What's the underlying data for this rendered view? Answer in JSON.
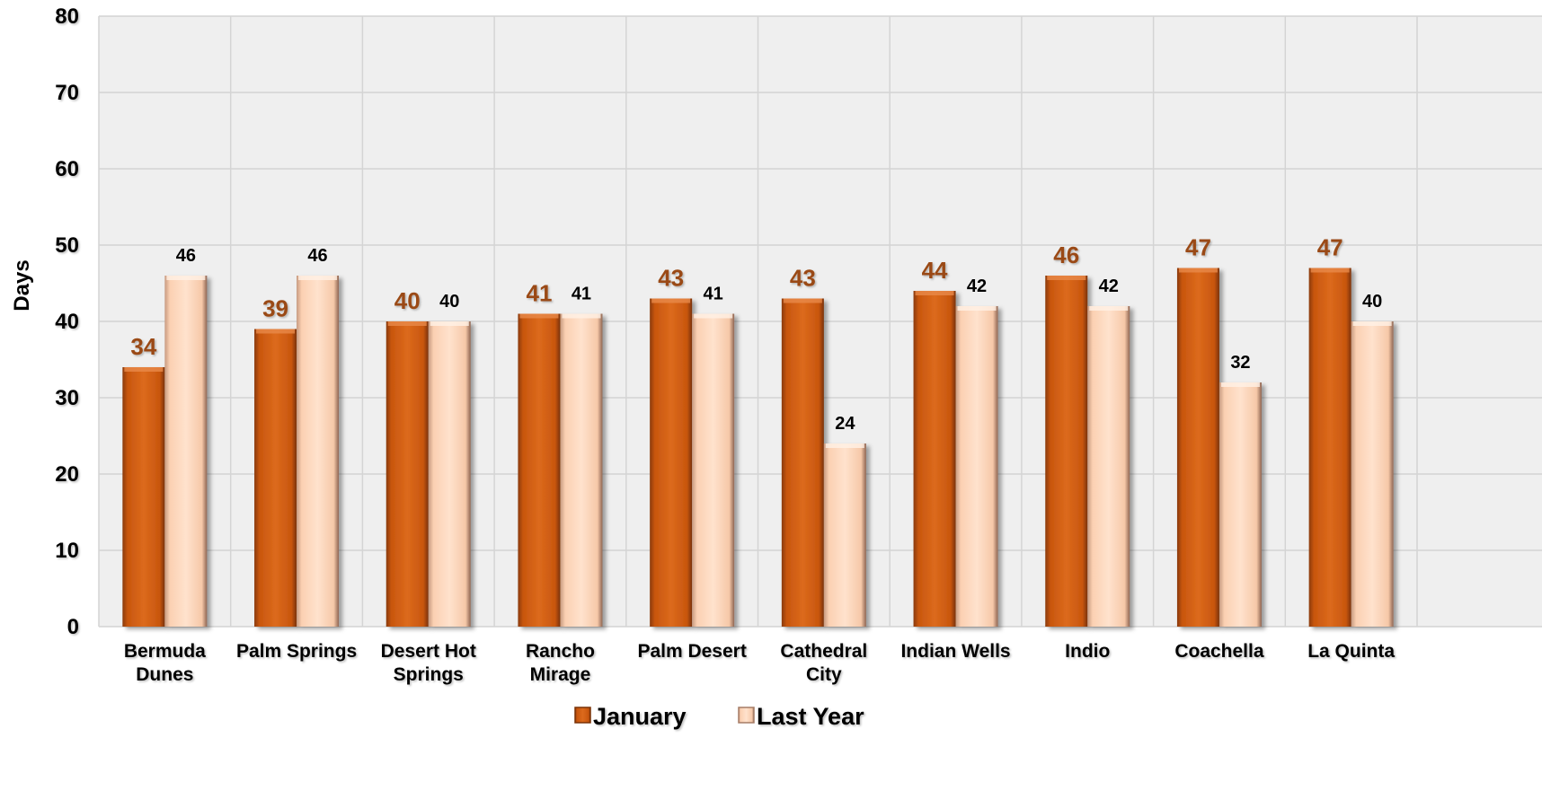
{
  "chart_data": {
    "type": "bar",
    "ylabel": "Days",
    "ylim": [
      0,
      80
    ],
    "yticks": [
      0,
      10,
      20,
      30,
      40,
      50,
      60,
      70,
      80
    ],
    "grid": true,
    "legend_position": "bottom-center",
    "categories": [
      [
        "Bermuda",
        "Dunes"
      ],
      [
        "Palm Springs"
      ],
      [
        "Desert Hot",
        "Springs"
      ],
      [
        "Rancho",
        "Mirage"
      ],
      [
        "Palm Desert"
      ],
      [
        "Cathedral",
        "City"
      ],
      [
        "Indian Wells"
      ],
      [
        "Indio"
      ],
      [
        "Coachella"
      ],
      [
        "La Quinta"
      ]
    ],
    "series": [
      {
        "name": "January",
        "color": "#d05e12",
        "values": [
          34,
          39,
          40,
          41,
          43,
          43,
          44,
          46,
          47,
          47
        ]
      },
      {
        "name": "Last Year",
        "color": "#fdd2b5",
        "values": [
          46,
          46,
          40,
          41,
          41,
          24,
          42,
          42,
          32,
          40
        ]
      }
    ]
  }
}
